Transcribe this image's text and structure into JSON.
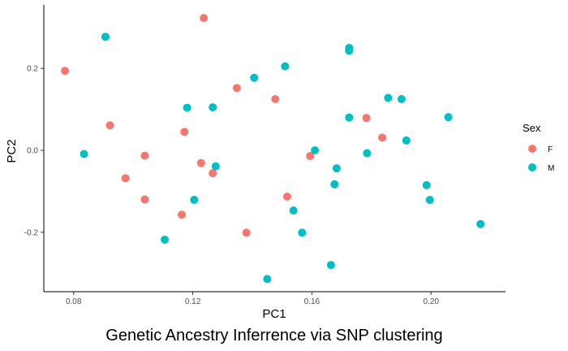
{
  "chart_data": {
    "type": "scatter",
    "title": "",
    "caption": "Genetic Ancestry Inferrence via SNP clustering",
    "xlabel": "PC1",
    "ylabel": "PC2",
    "xlim": [
      0.07,
      0.225
    ],
    "ylim": [
      -0.345,
      0.355
    ],
    "x_ticks": [
      0.08,
      0.12,
      0.16,
      0.2
    ],
    "x_tick_labels": [
      "0.08",
      "0.12",
      "0.16",
      "0.20"
    ],
    "y_ticks": [
      -0.2,
      0.0,
      0.2
    ],
    "y_tick_labels": [
      "-0.2",
      "0.0",
      "0.2"
    ],
    "grid": false,
    "legend": {
      "title": "Sex",
      "position": "right",
      "entries": [
        {
          "label": "F",
          "color": "#F8766D"
        },
        {
          "label": "M",
          "color": "#00BFC4"
        }
      ]
    },
    "series": [
      {
        "name": "F",
        "color": "#F8766D",
        "points": [
          [
            0.0771,
            0.194
          ],
          [
            0.0922,
            0.061
          ],
          [
            0.0974,
            -0.068
          ],
          [
            0.1039,
            -0.013
          ],
          [
            0.1039,
            -0.12
          ],
          [
            0.1163,
            -0.157
          ],
          [
            0.1172,
            0.045
          ],
          [
            0.1228,
            -0.031
          ],
          [
            0.1237,
            0.323
          ],
          [
            0.1267,
            -0.056
          ],
          [
            0.1348,
            0.152
          ],
          [
            0.138,
            -0.201
          ],
          [
            0.1477,
            0.125
          ],
          [
            0.1517,
            -0.113
          ],
          [
            0.1594,
            -0.014
          ],
          [
            0.1783,
            0.079
          ],
          [
            0.1836,
            0.031
          ]
        ]
      },
      {
        "name": "M",
        "color": "#00BFC4",
        "points": [
          [
            0.0835,
            -0.009
          ],
          [
            0.0907,
            0.277
          ],
          [
            0.1106,
            -0.218
          ],
          [
            0.1181,
            0.104
          ],
          [
            0.1205,
            -0.121
          ],
          [
            0.1267,
            0.105
          ],
          [
            0.1277,
            -0.039
          ],
          [
            0.1406,
            0.177
          ],
          [
            0.145,
            -0.314
          ],
          [
            0.151,
            0.205
          ],
          [
            0.1538,
            -0.147
          ],
          [
            0.1567,
            -0.201
          ],
          [
            0.161,
            0.0
          ],
          [
            0.1664,
            -0.28
          ],
          [
            0.1676,
            -0.083
          ],
          [
            0.1683,
            -0.044
          ],
          [
            0.1725,
            0.08
          ],
          [
            0.1725,
            0.243
          ],
          [
            0.1725,
            0.25
          ],
          [
            0.1785,
            -0.007
          ],
          [
            0.1856,
            0.128
          ],
          [
            0.1901,
            0.125
          ],
          [
            0.1917,
            0.024
          ],
          [
            0.1985,
            -0.085
          ],
          [
            0.1996,
            -0.121
          ],
          [
            0.2058,
            0.081
          ],
          [
            0.2166,
            -0.18
          ]
        ]
      }
    ]
  }
}
